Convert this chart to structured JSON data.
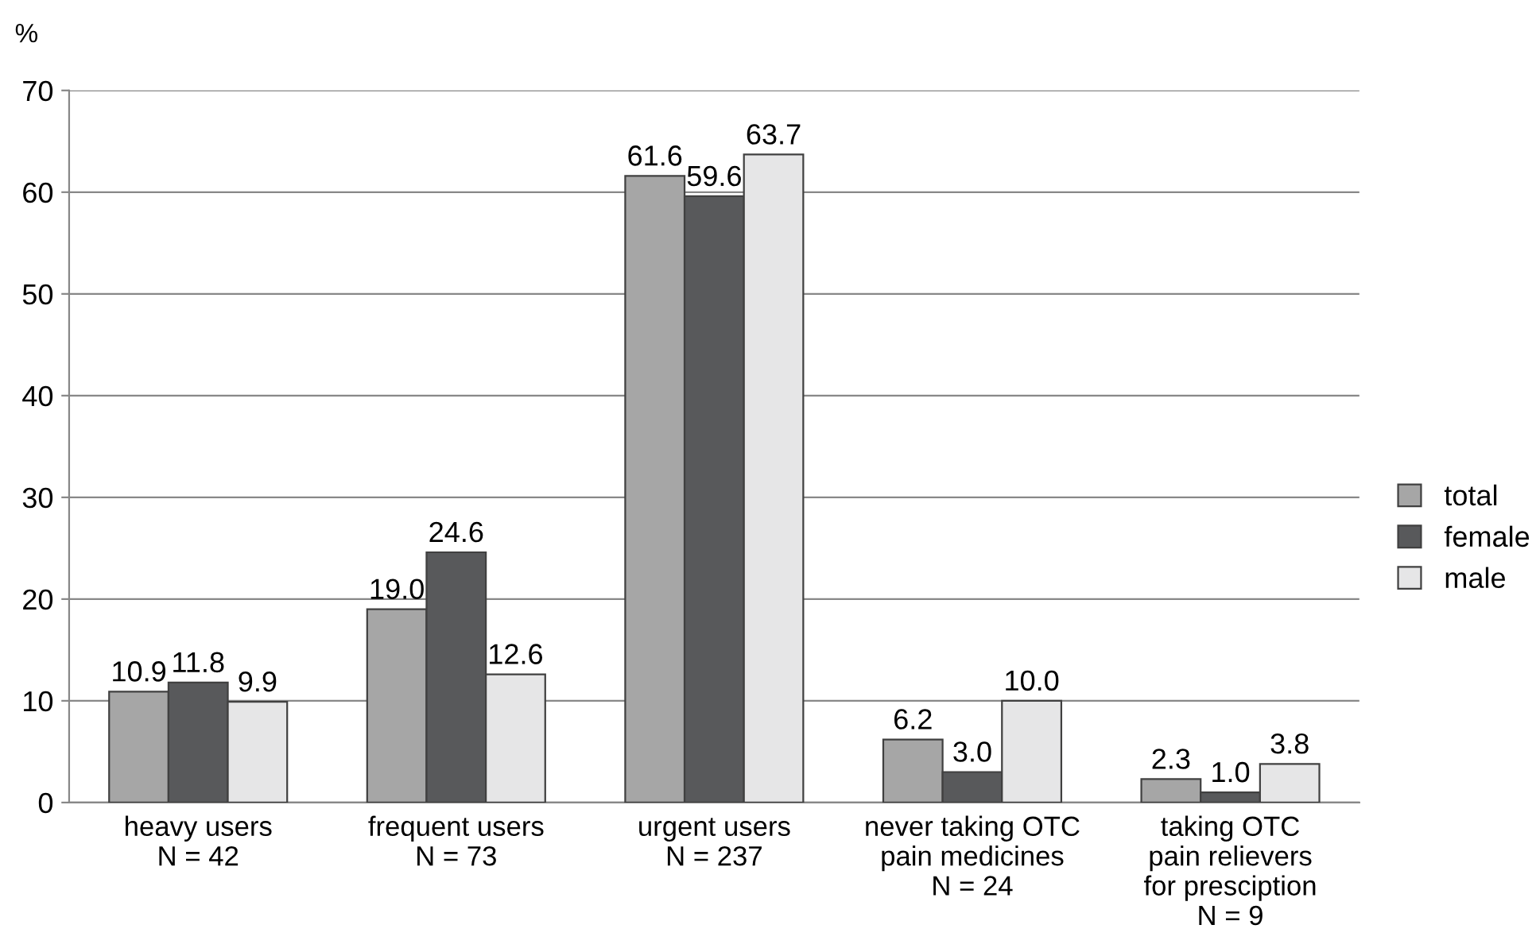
{
  "chart_data": {
    "type": "bar",
    "ylabel": "%",
    "categories": [
      "heavy users\nN = 42",
      "frequent users\nN = 73",
      "urgent users\nN = 237",
      "never taking OTC\npain medicines\nN = 24",
      "taking OTC\npain relievers\nfor presciption\nN = 9"
    ],
    "series": [
      {
        "name": "total",
        "color": "#a6a6a6",
        "values": [
          10.9,
          19.0,
          61.6,
          6.2,
          2.3
        ],
        "value_labels": [
          "10.9",
          "19.0",
          "61.6",
          "6.2",
          "2.3"
        ]
      },
      {
        "name": "female",
        "color": "#58595b",
        "values": [
          11.8,
          24.6,
          59.6,
          3.0,
          1.0
        ],
        "value_labels": [
          "11.8",
          "24.6",
          "59.6",
          "3.0",
          "1.0"
        ]
      },
      {
        "name": "male",
        "color": "#e6e6e7",
        "values": [
          9.9,
          12.6,
          63.7,
          10.0,
          3.8
        ],
        "value_labels": [
          "9.9",
          "12.6",
          "63.7",
          "10.0",
          "3.8"
        ]
      }
    ],
    "ylim": [
      0,
      70
    ],
    "yticks": [
      0,
      10,
      20,
      30,
      40,
      50,
      60,
      70
    ],
    "grid": "y",
    "legend": "right"
  }
}
